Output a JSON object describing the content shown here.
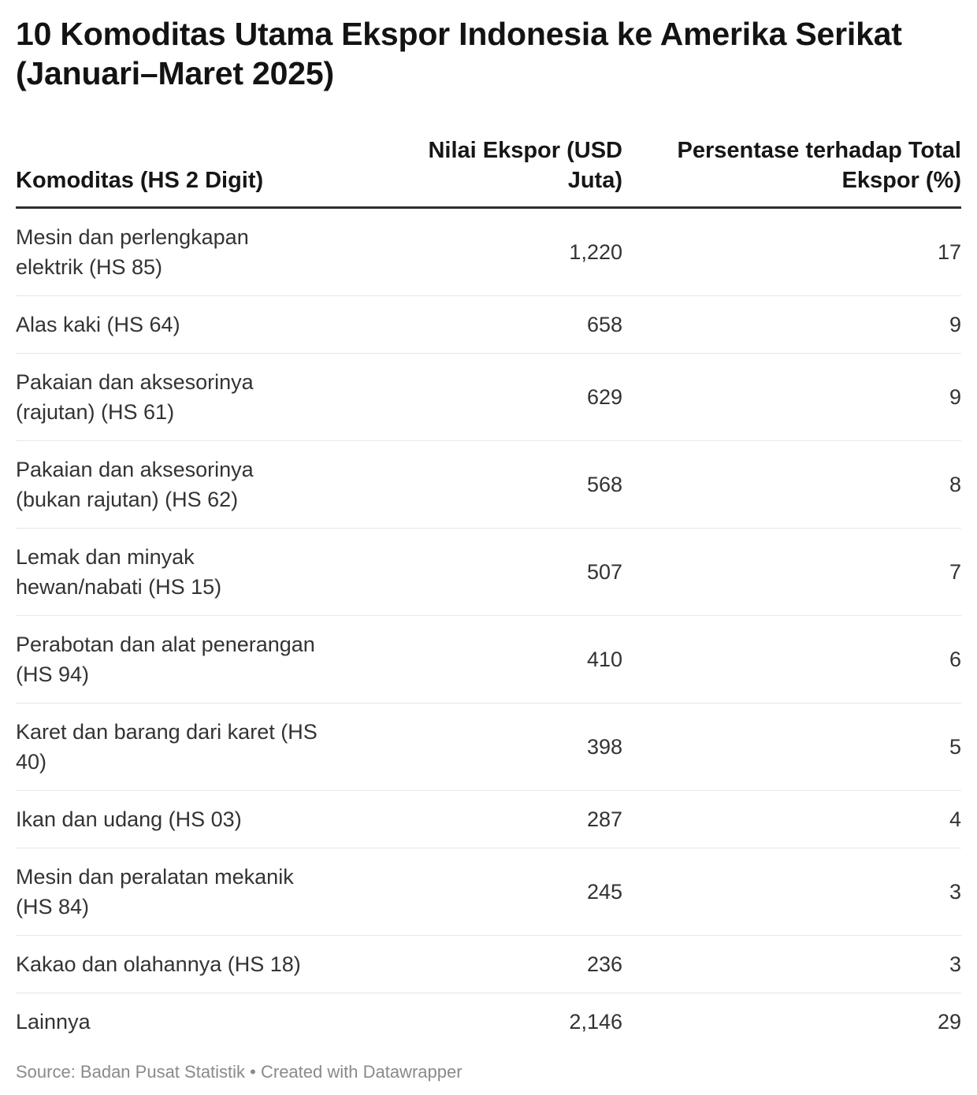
{
  "title": "10 Komoditas Utama Ekspor Indonesia ke Amerika Serikat\n(Januari–Maret 2025)",
  "table": {
    "columns": {
      "komoditas": "Komoditas (HS 2 Digit)",
      "nilai": "Nilai Ekspor (USD\nJuta)",
      "persen": "Persentase terhadap Total\nEkspor (%)"
    },
    "rows": [
      {
        "komoditas": "Mesin dan perlengkapan\nelektrik (HS 85)",
        "nilai": "1,220",
        "persen": "17"
      },
      {
        "komoditas": "Alas kaki (HS 64)",
        "nilai": "658",
        "persen": "9"
      },
      {
        "komoditas": "Pakaian dan aksesorinya\n(rajutan) (HS 61)",
        "nilai": "629",
        "persen": "9"
      },
      {
        "komoditas": "Pakaian dan aksesorinya\n(bukan rajutan) (HS 62)",
        "nilai": "568",
        "persen": "8"
      },
      {
        "komoditas": "Lemak dan minyak\nhewan/nabati (HS 15)",
        "nilai": "507",
        "persen": "7"
      },
      {
        "komoditas": "Perabotan dan alat penerangan\n(HS 94)",
        "nilai": "410",
        "persen": "6"
      },
      {
        "komoditas": "Karet dan barang dari karet (HS\n40)",
        "nilai": "398",
        "persen": "5"
      },
      {
        "komoditas": "Ikan dan udang (HS 03)",
        "nilai": "287",
        "persen": "4"
      },
      {
        "komoditas": "Mesin dan peralatan mekanik\n(HS 84)",
        "nilai": "245",
        "persen": "3"
      },
      {
        "komoditas": "Kakao dan olahannya (HS 18)",
        "nilai": "236",
        "persen": "3"
      },
      {
        "komoditas": "Lainnya",
        "nilai": "2,146",
        "persen": "29"
      }
    ]
  },
  "footer": {
    "source_line": "Source: Badan Pusat Statistik • Created with Datawrapper"
  },
  "colors": {
    "title_text": "#131313",
    "header_text": "#161616",
    "body_text": "#333333",
    "header_rule": "#2f2f2f",
    "row_divider": "#e7e7e7",
    "footer_text": "#8a8a8a",
    "background": "#ffffff"
  },
  "chart_data": {
    "type": "table",
    "title": "10 Komoditas Utama Ekspor Indonesia ke Amerika Serikat (Januari–Maret 2025)",
    "columns": [
      "Komoditas (HS 2 Digit)",
      "Nilai Ekspor (USD Juta)",
      "Persentase terhadap Total Ekspor (%)"
    ],
    "rows": [
      [
        "Mesin dan perlengkapan elektrik (HS 85)",
        1220,
        17
      ],
      [
        "Alas kaki (HS 64)",
        658,
        9
      ],
      [
        "Pakaian dan aksesorinya (rajutan) (HS 61)",
        629,
        9
      ],
      [
        "Pakaian dan aksesorinya (bukan rajutan) (HS 62)",
        568,
        8
      ],
      [
        "Lemak dan minyak hewan/nabati (HS 15)",
        507,
        7
      ],
      [
        "Perabotan dan alat penerangan (HS 94)",
        410,
        6
      ],
      [
        "Karet dan barang dari karet (HS 40)",
        398,
        5
      ],
      [
        "Ikan dan udang (HS 03)",
        287,
        4
      ],
      [
        "Mesin dan peralatan mekanik (HS 84)",
        245,
        3
      ],
      [
        "Kakao dan olahannya (HS 18)",
        236,
        3
      ],
      [
        "Lainnya",
        2146,
        29
      ]
    ],
    "source": "Badan Pusat Statistik",
    "tool": "Datawrapper"
  }
}
